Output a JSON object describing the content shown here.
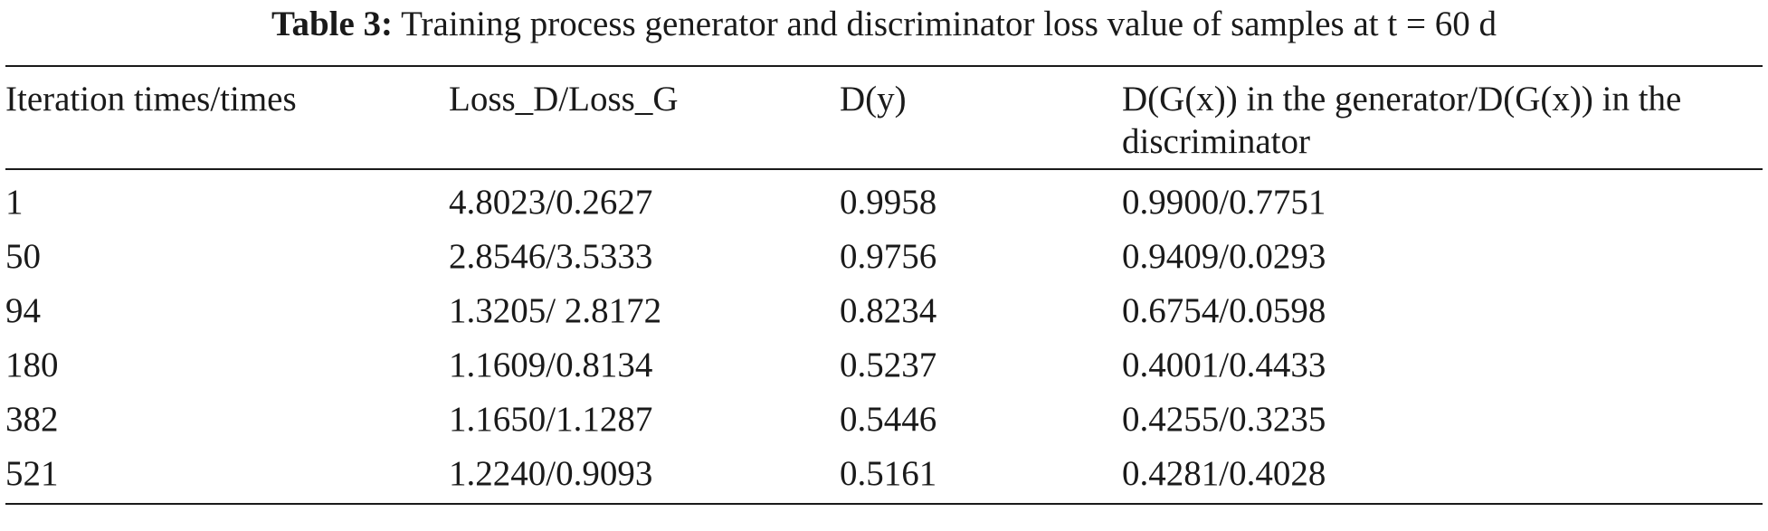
{
  "caption": {
    "label": "Table 3:",
    "text": "Training process generator and discriminator loss value of samples at t = 60 d"
  },
  "table": {
    "headers": [
      "Iteration times/times",
      "Loss_D/Loss_G",
      "D(y)",
      "D(G(x)) in the generator/D(G(x)) in the discriminator"
    ],
    "rows": [
      [
        "1",
        "4.8023/0.2627",
        "0.9958",
        "0.9900/0.7751"
      ],
      [
        "50",
        "2.8546/3.5333",
        "0.9756",
        "0.9409/0.0293"
      ],
      [
        "94",
        "1.3205/ 2.8172",
        "0.8234",
        "0.6754/0.0598"
      ],
      [
        "180",
        "1.1609/0.8134",
        "0.5237",
        "0.4001/0.4433"
      ],
      [
        "382",
        "1.1650/1.1287",
        "0.5446",
        "0.4255/0.3235"
      ],
      [
        "521",
        "1.2240/0.9093",
        "0.5161",
        "0.4281/0.4028"
      ]
    ]
  }
}
